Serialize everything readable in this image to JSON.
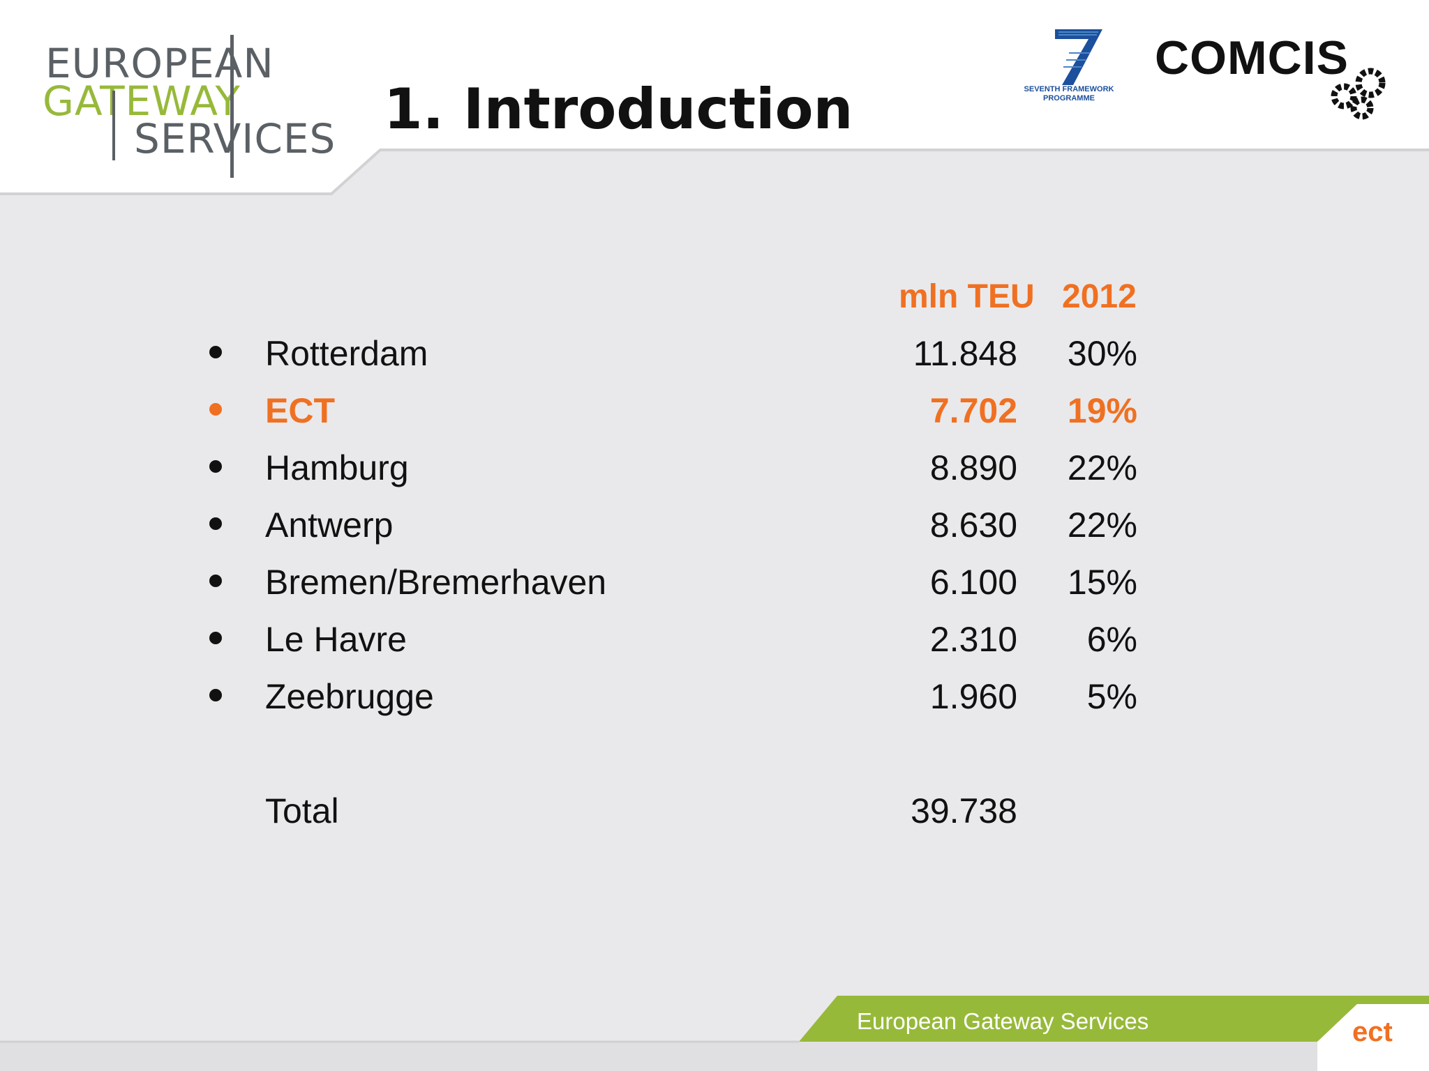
{
  "logo_left": {
    "line1": "EUROPEAN",
    "line2": "GATEWAY",
    "line3": "SERVICES"
  },
  "title": "1. Introduction",
  "fp7_logo": {
    "text": "SEVENTH FRAMEWORK\nPROGRAMME"
  },
  "comcis_logo": {
    "text": "COMCIS"
  },
  "table": {
    "headers": {
      "volume": "mln TEU",
      "year": "2012"
    },
    "rows": [
      {
        "name": "Rotterdam",
        "value": "11.848",
        "share": "30%",
        "highlight": false
      },
      {
        "name": "ECT",
        "value": "7.702",
        "share": "19%",
        "highlight": true
      },
      {
        "name": "Hamburg",
        "value": "8.890",
        "share": "22%",
        "highlight": false
      },
      {
        "name": "Antwerp",
        "value": "8.630",
        "share": "22%",
        "highlight": false
      },
      {
        "name": "Bremen/Bremerhaven",
        "value": "6.100",
        "share": "15%",
        "highlight": false
      },
      {
        "name": "Le Havre",
        "value": "2.310",
        "share": "6%",
        "highlight": false
      },
      {
        "name": "Zeebrugge",
        "value": "1.960",
        "share": "5%",
        "highlight": false
      }
    ],
    "total": {
      "label": "Total",
      "value": "39.738"
    }
  },
  "footer": {
    "text": "European Gateway Services",
    "ect": "ect"
  },
  "colors": {
    "accent": "#f07022",
    "green": "#97b93a",
    "text": "#111111"
  }
}
